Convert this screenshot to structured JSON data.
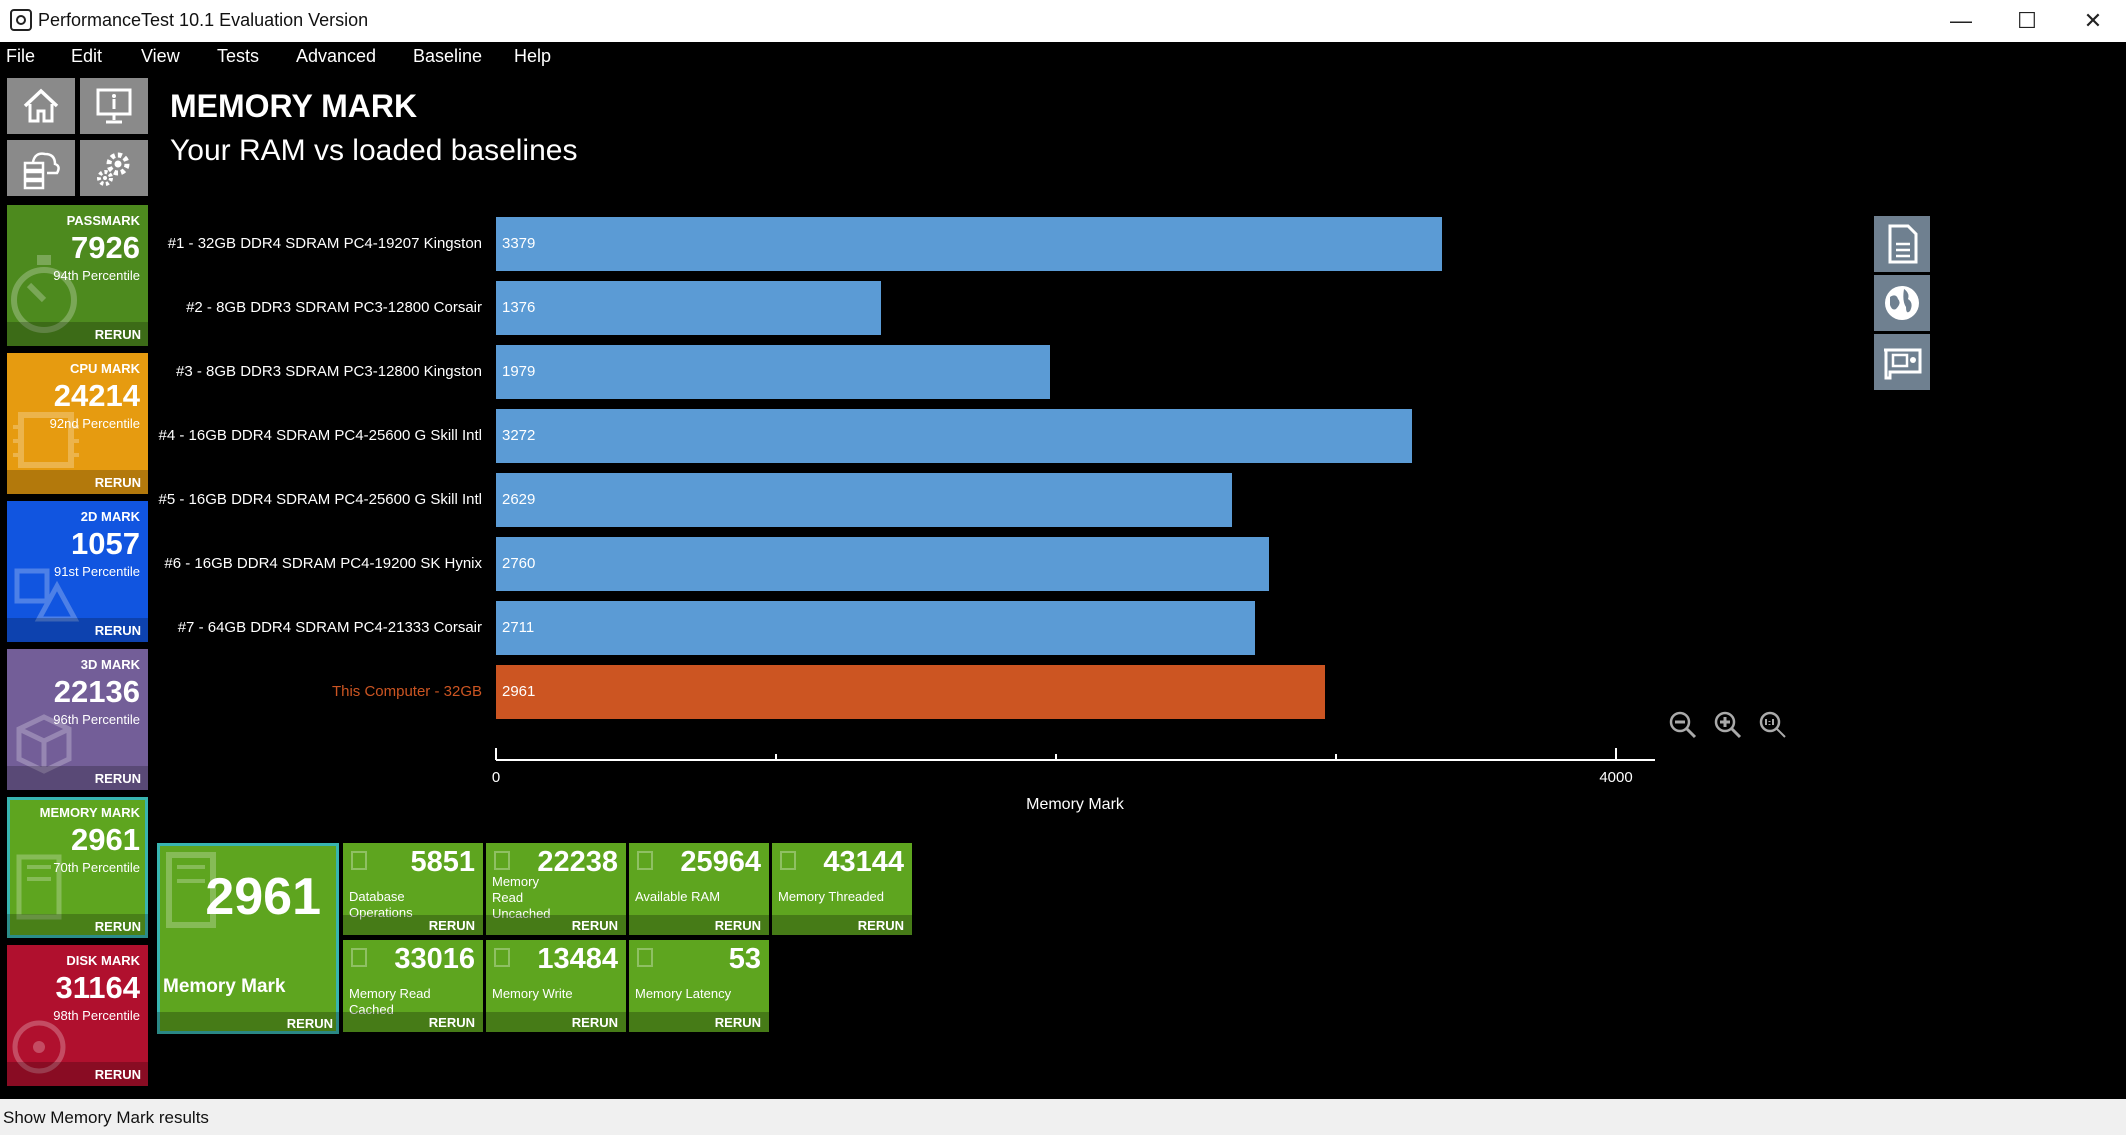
{
  "window": {
    "title": "PerformanceTest 10.1 Evaluation Version"
  },
  "menu": [
    "File",
    "Edit",
    "View",
    "Tests",
    "Advanced",
    "Baseline",
    "Help"
  ],
  "sidebar": {
    "tiles": [
      {
        "title": "PASSMARK",
        "score": "7926",
        "percentile": "94th Percentile",
        "rerun": "RERUN",
        "color": "#4d8a1e"
      },
      {
        "title": "CPU MARK",
        "score": "24214",
        "percentile": "92nd Percentile",
        "rerun": "RERUN",
        "color": "#e69b10"
      },
      {
        "title": "2D MARK",
        "score": "1057",
        "percentile": "91st Percentile",
        "rerun": "RERUN",
        "color": "#1155e0"
      },
      {
        "title": "3D MARK",
        "score": "22136",
        "percentile": "96th Percentile",
        "rerun": "RERUN",
        "color": "#735e98"
      },
      {
        "title": "MEMORY MARK",
        "score": "2961",
        "percentile": "70th Percentile",
        "rerun": "RERUN",
        "color": "#5ea51f"
      },
      {
        "title": "DISK MARK",
        "score": "31164",
        "percentile": "98th Percentile",
        "rerun": "RERUN",
        "color": "#b0102e"
      }
    ]
  },
  "header": {
    "title": "MEMORY MARK",
    "subtitle": "Your RAM vs loaded baselines"
  },
  "chart_data": {
    "type": "bar",
    "orientation": "horizontal",
    "categories": [
      "#1 - 32GB DDR4 SDRAM PC4-19207 Kingston",
      "#2 - 8GB DDR3 SDRAM PC3-12800 Corsair",
      "#3 - 8GB DDR3 SDRAM PC3-12800 Kingston",
      "#4 - 16GB DDR4 SDRAM PC4-25600 G Skill Intl",
      "#5 - 16GB DDR4 SDRAM PC4-25600 G Skill Intl",
      "#6 - 16GB DDR4 SDRAM PC4-19200 SK Hynix",
      "#7 - 64GB DDR4 SDRAM PC4-21333 Corsair",
      "This Computer - 32GB"
    ],
    "values": [
      3379,
      1376,
      1979,
      3272,
      2629,
      2760,
      2711,
      2961
    ],
    "highlight_index": 7,
    "colors": {
      "baseline": "#5b9bd5",
      "this_computer": "#cc5522",
      "this_computer_label": "#cc5522"
    },
    "xlabel": "Memory Mark",
    "xlim": [
      0,
      4000
    ],
    "xticks": [
      "0",
      "4000"
    ],
    "grid": false
  },
  "main_tile": {
    "score": "2961",
    "label": "Memory Mark",
    "rerun": "RERUN",
    "color": "#5ea51f"
  },
  "subtests": [
    {
      "value": "5851",
      "label": "Database Operations",
      "rerun": "RERUN"
    },
    {
      "value": "22238",
      "label": "Memory Read Uncached",
      "rerun": "RERUN"
    },
    {
      "value": "25964",
      "label": "Available RAM",
      "rerun": "RERUN"
    },
    {
      "value": "43144",
      "label": "Memory Threaded",
      "rerun": "RERUN"
    },
    {
      "value": "33016",
      "label": "Memory Read Cached",
      "rerun": "RERUN"
    },
    {
      "value": "13484",
      "label": "Memory Write",
      "rerun": "RERUN"
    },
    {
      "value": "53",
      "label": "Memory Latency",
      "rerun": "RERUN"
    }
  ],
  "statusbar": {
    "text": "Show Memory Mark results"
  }
}
